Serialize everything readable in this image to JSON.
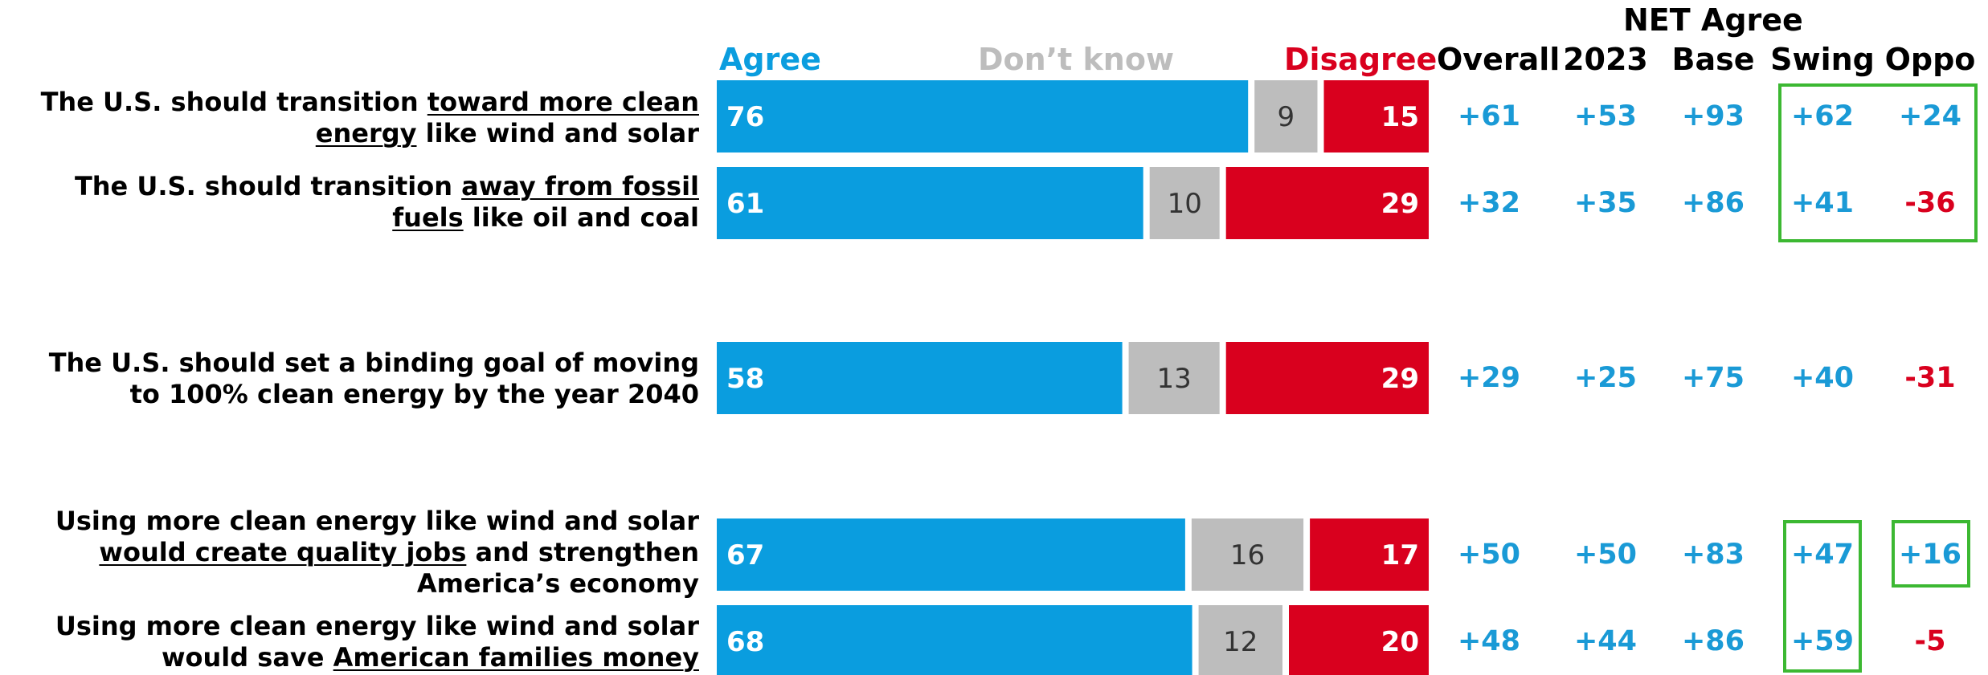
{
  "colors": {
    "agree": "#0a9ddf",
    "dont_know": "#bdbdbd",
    "disagree": "#d9001e",
    "positive_text": "#1a9ad6",
    "negative_text": "#d9001e",
    "highlight_box": "#3cb832"
  },
  "legend": {
    "agree": "Agree",
    "dont_know": "Don’t know",
    "disagree": "Disagree"
  },
  "net_header": "NET Agree",
  "columns": [
    "Overall",
    "2023",
    "Base",
    "Swing",
    "Oppo"
  ],
  "statements": [
    {
      "parts": [
        [
          "The U.S. should transition ",
          false
        ],
        [
          "toward more clean energy",
          true
        ],
        [
          " like wind and solar",
          false
        ]
      ]
    },
    {
      "parts": [
        [
          "The U.S. should transition ",
          false
        ],
        [
          "away from fossil fuels",
          true
        ],
        [
          " like oil and coal",
          false
        ]
      ]
    },
    {
      "parts": [
        [
          "The U.S. should set a binding goal of moving to 100% clean energy by the year 2040",
          false
        ]
      ]
    },
    {
      "parts": [
        [
          "Using more clean energy like wind and solar ",
          false
        ],
        [
          "would create quality jobs",
          true
        ],
        [
          " and strengthen America’s economy",
          false
        ]
      ]
    },
    {
      "parts": [
        [
          "Using more clean energy like wind and solar would save ",
          false
        ],
        [
          "American families money",
          true
        ]
      ]
    }
  ],
  "net_values": [
    [
      "+61",
      "+53",
      "+93",
      "+62",
      "+24"
    ],
    [
      "+32",
      "+35",
      "+86",
      "+41",
      "-36"
    ],
    [
      "+29",
      "+25",
      "+75",
      "+40",
      "-31"
    ],
    [
      "+50",
      "+50",
      "+83",
      "+47",
      "+16"
    ],
    [
      "+48",
      "+44",
      "+86",
      "+59",
      "-5"
    ]
  ],
  "chart_data": {
    "type": "bar",
    "stacked": true,
    "orientation": "horizontal",
    "categories": [
      "The U.S. should transition toward more clean energy like wind and solar",
      "The U.S. should transition away from fossil fuels like oil and coal",
      "The U.S. should set a binding goal of moving to 100% clean energy by the year 2040",
      "Using more clean energy like wind and solar would create quality jobs and strengthen America’s economy",
      "Using more clean energy like wind and solar would save American families money"
    ],
    "series": [
      {
        "name": "Agree",
        "values": [
          76,
          61,
          58,
          67,
          68
        ]
      },
      {
        "name": "Don’t know",
        "values": [
          9,
          10,
          13,
          16,
          12
        ]
      },
      {
        "name": "Disagree",
        "values": [
          15,
          29,
          29,
          17,
          20
        ]
      }
    ],
    "xlim": [
      0,
      100
    ]
  }
}
